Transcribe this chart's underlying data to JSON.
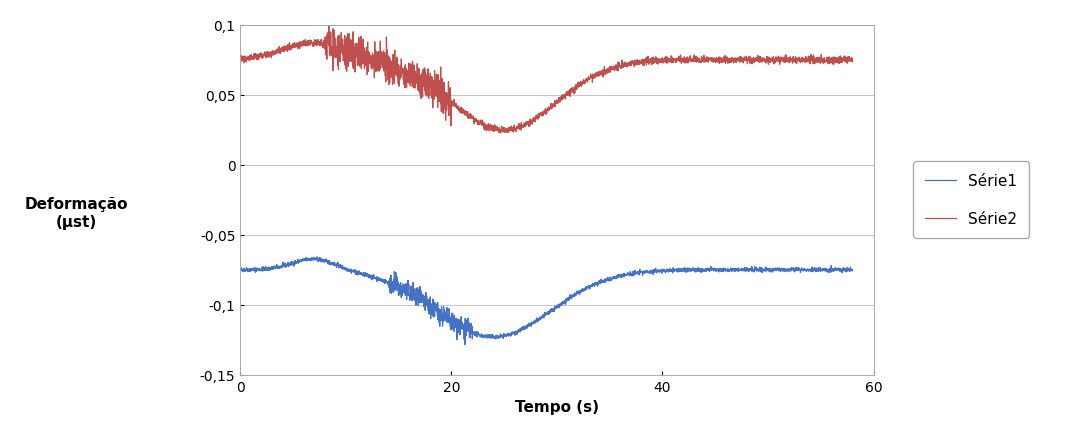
{
  "title": "",
  "xlabel": "Tempo (s)",
  "ylabel": "Deformação\n(μst)",
  "xlim": [
    0,
    60
  ],
  "ylim": [
    -0.15,
    0.1
  ],
  "yticks": [
    -0.15,
    -0.1,
    -0.05,
    0,
    0.05,
    0.1
  ],
  "xticks": [
    0,
    20,
    40,
    60
  ],
  "serie1_color": "#4472C4",
  "serie2_color": "#C0504D",
  "legend_labels": [
    "Série1",
    "Série2"
  ],
  "background_color": "#FFFFFF"
}
